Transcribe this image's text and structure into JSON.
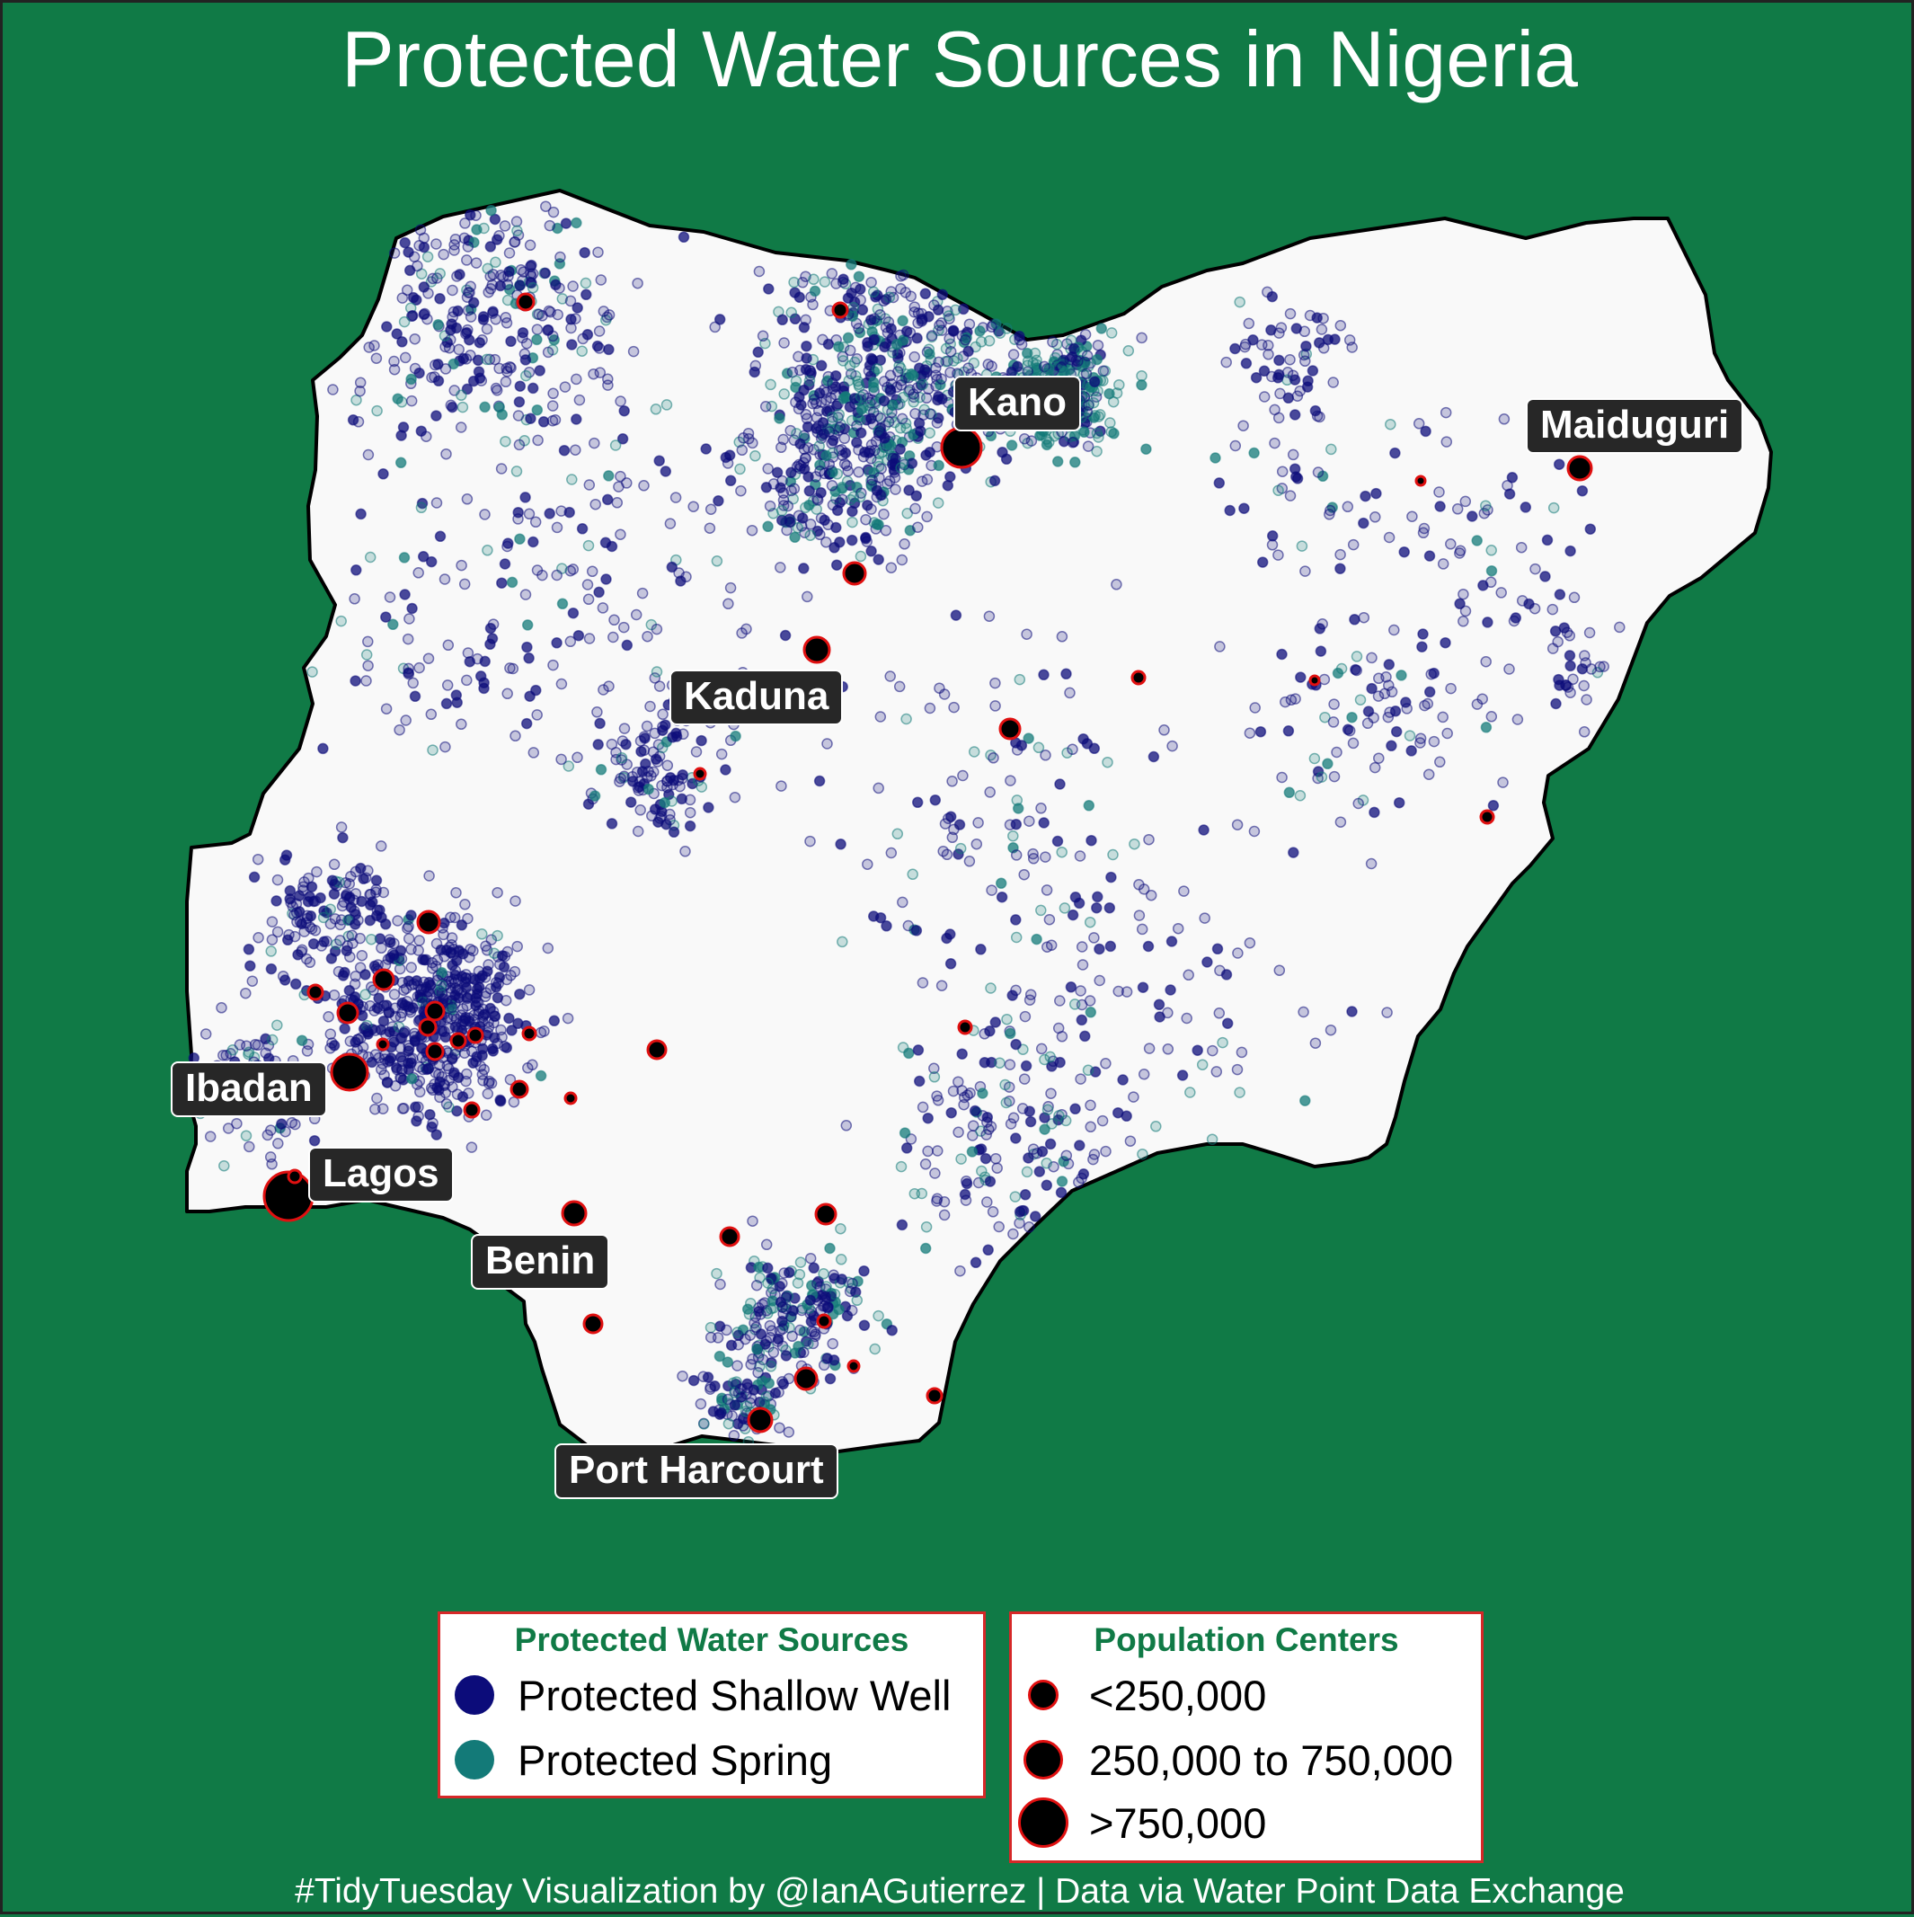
{
  "title": "Protected Water Sources in Nigeria",
  "caption": "#TidyTuesday Visualization by @IanAGutierrez | Data via Water Point Data Exchange",
  "colors": {
    "background": "#107a46",
    "land": "#f9f9f9",
    "border": "#000000",
    "shallow_well": "#0c0c7a",
    "spring": "#137a78",
    "city_outline": "#e01010",
    "legend_title": "#107a46",
    "label_bg": "#272727"
  },
  "cities": [
    {
      "name": "Kano",
      "size": "large"
    },
    {
      "name": "Maiduguri",
      "size": "medium"
    },
    {
      "name": "Kaduna",
      "size": "medium"
    },
    {
      "name": "Ibadan",
      "size": "large"
    },
    {
      "name": "Lagos",
      "size": "large"
    },
    {
      "name": "Benin",
      "size": "medium"
    },
    {
      "name": "Port Harcourt",
      "size": "medium"
    }
  ],
  "legend_sources": {
    "title": "Protected Water Sources",
    "items": [
      {
        "label": "Protected Shallow Well",
        "color": "#0c0c7a"
      },
      {
        "label": "Protected Spring",
        "color": "#137a78"
      }
    ]
  },
  "legend_population": {
    "title": "Population Centers",
    "items": [
      {
        "label": "<250,000",
        "size": "small"
      },
      {
        "label": "250,000 to 750,000",
        "size": "medium"
      },
      {
        "label": ">750,000",
        "size": "large"
      }
    ]
  }
}
